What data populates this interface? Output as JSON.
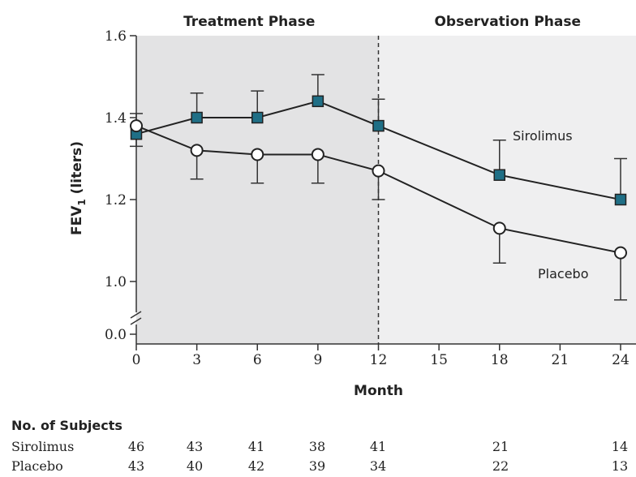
{
  "chart_data": {
    "type": "line",
    "xlabel": "Month",
    "ylabel": "FEV",
    "ylabel_sub": "1",
    "ylabel_unit": " (liters)",
    "phases": [
      {
        "label": "Treatment Phase",
        "x_start": 0,
        "x_end": 12
      },
      {
        "label": "Observation Phase",
        "x_start": 12,
        "x_end": 24
      }
    ],
    "x_ticks": [
      0,
      3,
      6,
      9,
      12,
      15,
      18,
      21,
      24
    ],
    "y_ticks": [
      "0.0",
      "1.0",
      "1.2",
      "1.4",
      "1.6"
    ],
    "y_axis_break": true,
    "xlim": [
      0,
      24
    ],
    "ylim": [
      0.87,
      1.6
    ],
    "series": [
      {
        "name": "Sirolimus",
        "marker": "square",
        "marker_color": "#1f6f86",
        "x": [
          0,
          3,
          6,
          9,
          12,
          18,
          24
        ],
        "y": [
          1.36,
          1.4,
          1.4,
          1.44,
          1.38,
          1.26,
          1.2
        ],
        "err": [
          0.05,
          0.06,
          0.065,
          0.065,
          0.065,
          0.085,
          0.1
        ]
      },
      {
        "name": "Placebo",
        "marker": "circle",
        "marker_color": "#ffffff",
        "x": [
          0,
          3,
          6,
          9,
          12,
          18,
          24
        ],
        "y": [
          1.38,
          1.32,
          1.31,
          1.31,
          1.27,
          1.13,
          1.07
        ],
        "err": [
          0.05,
          0.07,
          0.07,
          0.07,
          0.07,
          0.085,
          0.115
        ]
      }
    ],
    "subjects_table": {
      "title": "No. of Subjects",
      "x": [
        0,
        3,
        6,
        9,
        12,
        18,
        24
      ],
      "rows": [
        {
          "label": "Sirolimus",
          "values": [
            "46",
            "43",
            "41",
            "38",
            "41",
            "21",
            "14"
          ]
        },
        {
          "label": "Placebo",
          "values": [
            "43",
            "40",
            "42",
            "39",
            "34",
            "22",
            "13"
          ]
        }
      ]
    }
  }
}
